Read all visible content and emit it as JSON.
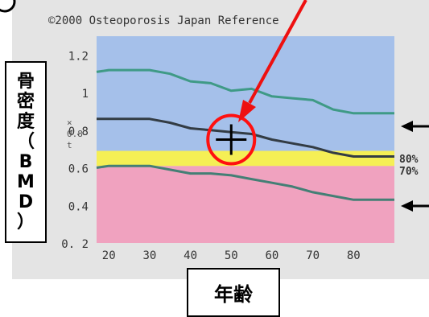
{
  "chart_data": {
    "type": "line",
    "title": "©2000 Osteoporosis Japan Reference",
    "ylabel": "骨密度（BMD）",
    "ylabel_chars": [
      "骨",
      "密",
      "度",
      "（",
      "B",
      "M",
      "D",
      "）"
    ],
    "y_axis_marks": "×\n0.8\nt",
    "xlabel": "年齢",
    "xlim": [
      17,
      90
    ],
    "ylim": [
      0.2,
      1.3
    ],
    "x_ticks": [
      "20",
      "30",
      "40",
      "50",
      "60",
      "70",
      "80"
    ],
    "y_ticks": [
      "0. 2",
      "0.4",
      "0.6",
      "0.8",
      "1",
      "1.2"
    ],
    "bands": [
      {
        "from": 0.2,
        "to": 0.61,
        "color": "#f0a2bf"
      },
      {
        "from": 0.61,
        "to": 0.69,
        "color": "#f5ef55"
      },
      {
        "from": 0.69,
        "to": 1.3,
        "color": "#a5c0ea"
      }
    ],
    "band_labels": [
      "80%",
      "70%"
    ],
    "series": [
      {
        "color": "#3f9a86",
        "x": [
          17,
          20,
          30,
          35,
          40,
          45,
          50,
          55,
          60,
          65,
          70,
          75,
          80,
          85,
          90
        ],
        "y": [
          1.11,
          1.12,
          1.12,
          1.1,
          1.06,
          1.05,
          1.01,
          1.02,
          0.98,
          0.97,
          0.96,
          0.91,
          0.89,
          0.89,
          0.89
        ]
      },
      {
        "color": "#333c44",
        "x": [
          17,
          20,
          30,
          35,
          40,
          45,
          50,
          55,
          60,
          65,
          70,
          75,
          80,
          85,
          90
        ],
        "y": [
          0.86,
          0.86,
          0.86,
          0.84,
          0.81,
          0.8,
          0.79,
          0.78,
          0.75,
          0.73,
          0.71,
          0.68,
          0.66,
          0.66,
          0.66
        ]
      },
      {
        "color": "#447f75",
        "x": [
          17,
          20,
          30,
          35,
          40,
          45,
          50,
          55,
          60,
          65,
          70,
          75,
          80,
          85,
          90
        ],
        "y": [
          0.6,
          0.61,
          0.61,
          0.59,
          0.57,
          0.57,
          0.56,
          0.54,
          0.52,
          0.5,
          0.47,
          0.45,
          0.43,
          0.43,
          0.43
        ]
      }
    ],
    "cursor": {
      "x": 50,
      "y": 0.75
    }
  },
  "colors": {
    "page_bg": "#e4e4e4",
    "circle": "#ff1010",
    "arrow": "#ee1010"
  },
  "icons": [
    "cursor-crosshair-icon",
    "red-circle-icon",
    "red-arrow-icon",
    "black-arrow-icon"
  ]
}
